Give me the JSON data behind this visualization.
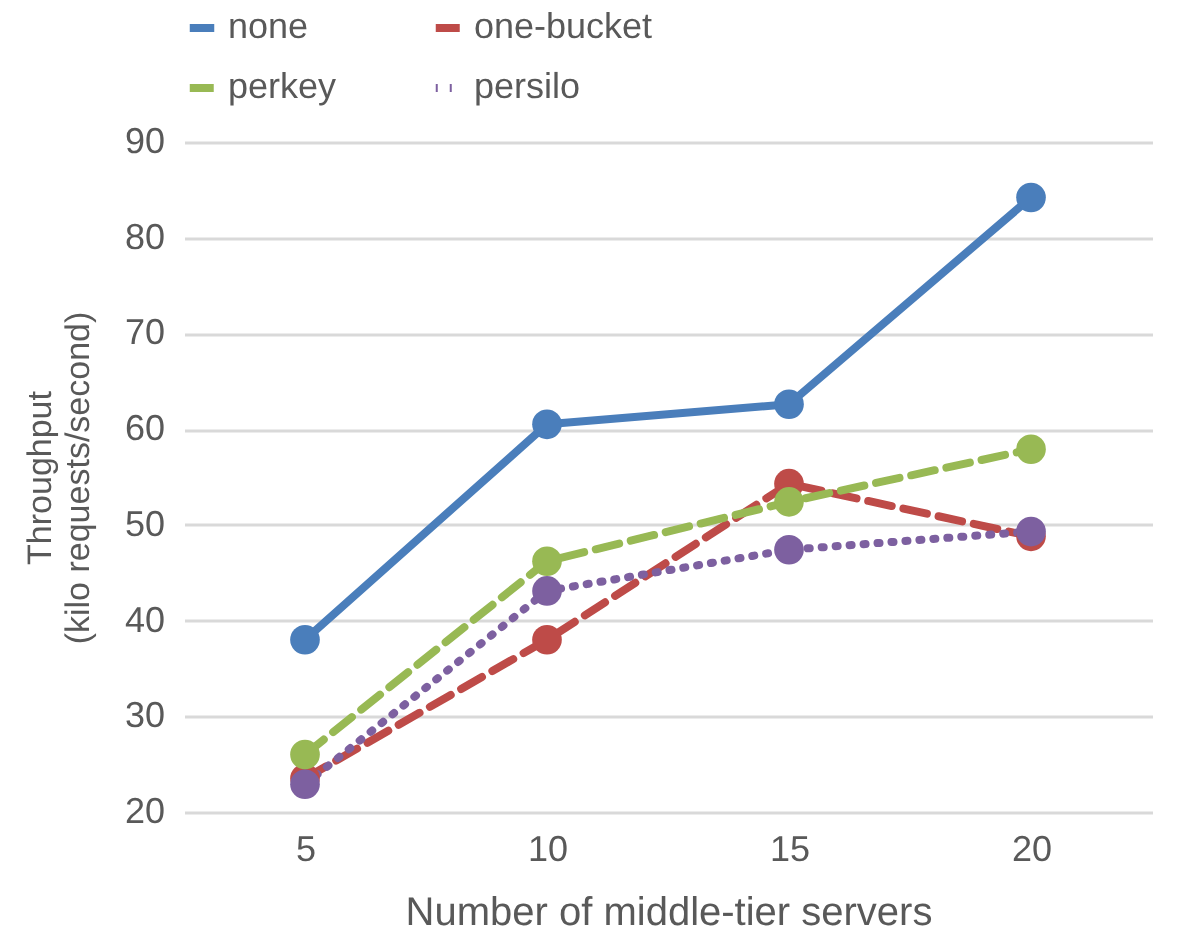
{
  "chart_data": {
    "type": "line",
    "xlabel": "Number of middle-tier servers",
    "ylabel": "Throughput\n(kilo requests/second)",
    "categories": [
      "5",
      "10",
      "15",
      "20"
    ],
    "series": [
      {
        "name": "none",
        "color": "#4a7ebb",
        "line_style": "solid",
        "values": [
          38.0,
          60.5,
          62.6,
          84.2
        ]
      },
      {
        "name": "one-bucket",
        "color": "#be4b48",
        "line_style": "dashed",
        "values": [
          23.5,
          38.0,
          54.3,
          48.8
        ]
      },
      {
        "name": "perkey",
        "color": "#98b954",
        "line_style": "dashed",
        "values": [
          26.0,
          46.2,
          52.4,
          57.9
        ]
      },
      {
        "name": "persilo",
        "color": "#7d60a0",
        "line_style": "dotted",
        "values": [
          22.9,
          43.1,
          47.4,
          49.3
        ]
      }
    ],
    "ylim": [
      20,
      90
    ],
    "yticks": [
      20,
      30,
      40,
      50,
      60,
      70,
      80,
      90
    ],
    "grid": "y",
    "legend": "top",
    "marker": "circle"
  }
}
